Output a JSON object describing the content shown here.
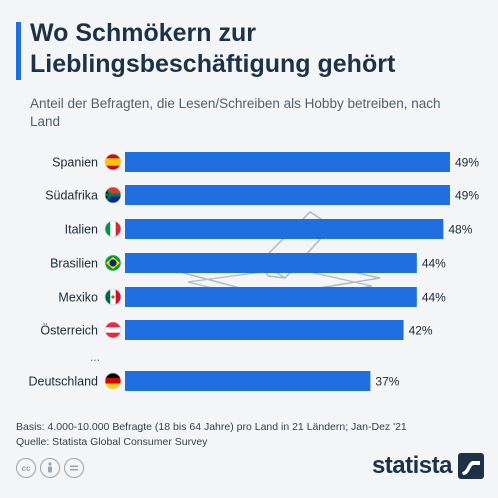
{
  "header": {
    "title": "Wo Schmökern zur Lieblingsbeschäftigung gehört",
    "subtitle": "Anteil der Befragten, die Lesen/Schreiben als Hobby betreiben, nach Land"
  },
  "colors": {
    "bar": "#1f6fe0",
    "accent": "#1f6fe0"
  },
  "chart_data": {
    "type": "bar",
    "orientation": "horizontal",
    "categories": [
      "Spanien",
      "Südafrika",
      "Italien",
      "Brasilien",
      "Mexiko",
      "Österreich",
      "Deutschland"
    ],
    "values": [
      49,
      49,
      48,
      44,
      44,
      42,
      37
    ],
    "value_labels": [
      "49%",
      "49%",
      "48%",
      "44%",
      "44%",
      "42%",
      "37%"
    ],
    "flags": [
      "spain-flag-icon",
      "south-africa-flag-icon",
      "italy-flag-icon",
      "brazil-flag-icon",
      "mexico-flag-icon",
      "austria-flag-icon",
      "germany-flag-icon"
    ],
    "gap_marker": "...",
    "xlim": [
      0,
      49
    ],
    "grid": false
  },
  "footer": {
    "basis": "Basis: 4.000-10.000 Befragte (18 bis 64 Jahre) pro Land in 21 Ländern; Jan-Dez '21",
    "source": "Quelle: Statista Global Consumer Survey",
    "brand": "statista"
  },
  "license_icons": [
    "cc-icon",
    "attribution-icon",
    "no-derivatives-icon"
  ]
}
